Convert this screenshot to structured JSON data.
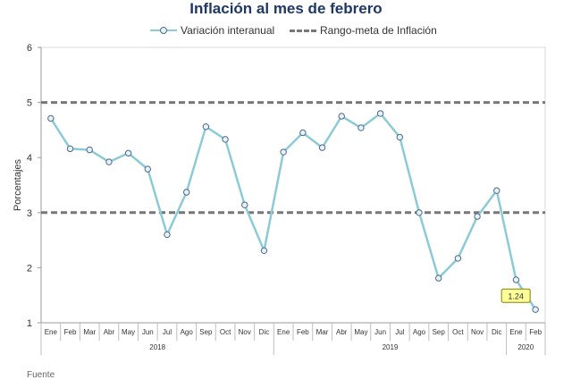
{
  "chart_data": {
    "type": "line",
    "title": "Inflación al mes de febrero",
    "ylabel": "Porcentajes",
    "xlabel": "",
    "ylim": [
      1,
      6
    ],
    "yticks": [
      1,
      2,
      3,
      4,
      5,
      6
    ],
    "grid": false,
    "legend_position": "top",
    "categories": [
      "Ene",
      "Feb",
      "Mar",
      "Abr",
      "May",
      "Jun",
      "Jul",
      "Ago",
      "Sep",
      "Oct",
      "Nov",
      "Dic",
      "Ene",
      "Feb",
      "Mar",
      "Abr",
      "May",
      "Jun",
      "Jul",
      "Ago",
      "Sep",
      "Oct",
      "Nov",
      "Dic",
      "Ene",
      "Feb"
    ],
    "year_groups": [
      {
        "label": "2018",
        "count": 12
      },
      {
        "label": "2019",
        "count": 12
      },
      {
        "label": "2020",
        "count": 2
      }
    ],
    "series": [
      {
        "name": "Variación interanual",
        "color": "#8ccbd6",
        "values": [
          4.71,
          4.16,
          4.14,
          3.92,
          4.08,
          3.79,
          2.6,
          3.37,
          4.56,
          4.33,
          3.14,
          2.31,
          4.1,
          4.45,
          4.18,
          4.75,
          4.54,
          4.8,
          4.37,
          3.0,
          1.81,
          2.17,
          2.93,
          3.4,
          1.78,
          1.24
        ]
      },
      {
        "name": "Rango-meta de Inflación",
        "color": "#777777",
        "lines": [
          3,
          5
        ]
      }
    ],
    "annotation": {
      "label": "1.24",
      "index": 25
    }
  },
  "footer": "Fuente"
}
